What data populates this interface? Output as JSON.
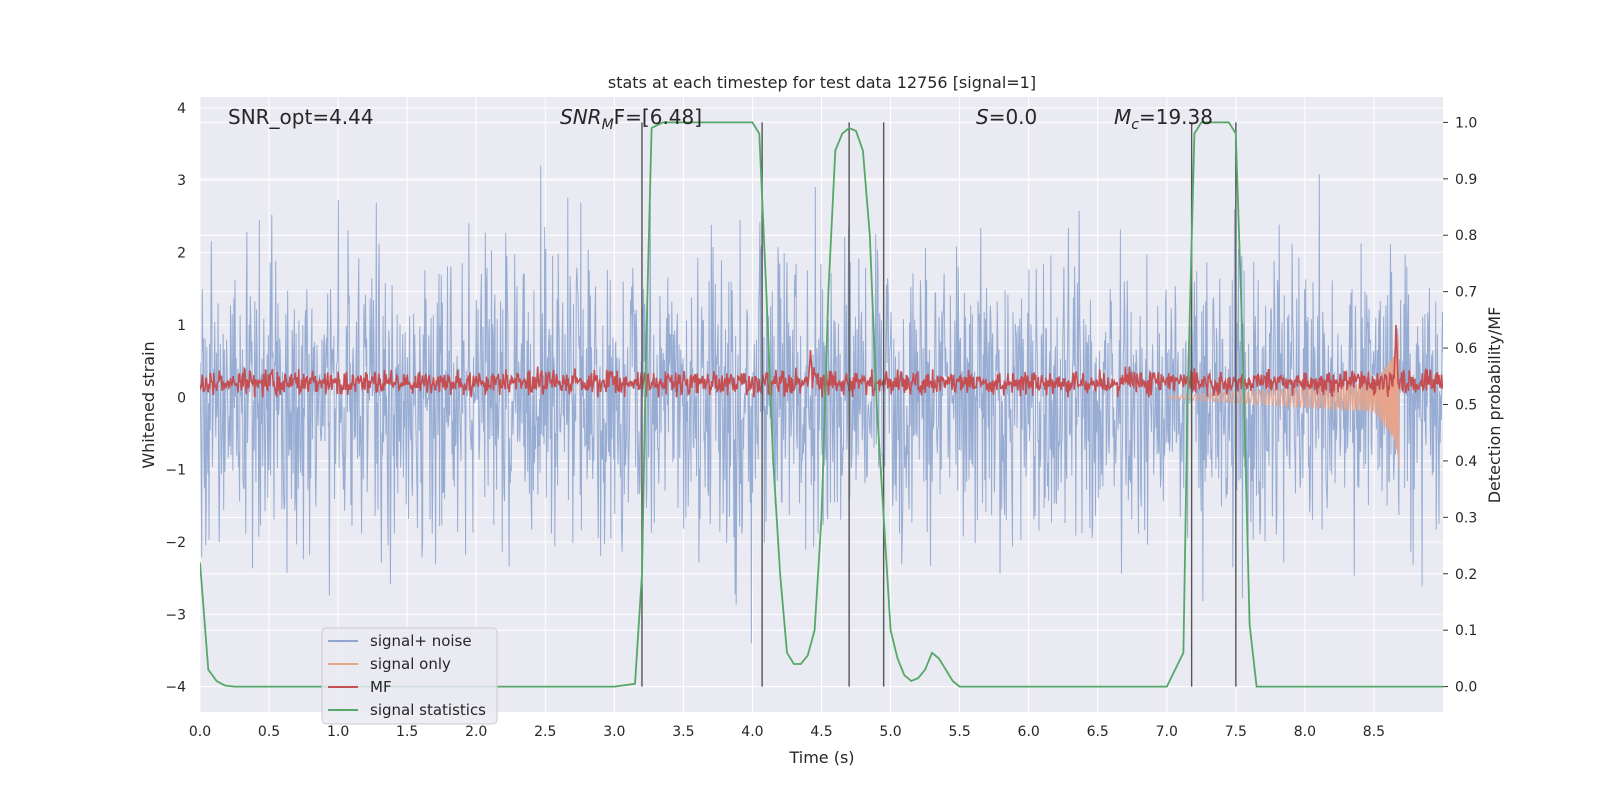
{
  "chart_data": {
    "type": "line",
    "title": "stats at each timestep for test data 12756 [signal=1]",
    "xlabel": "Time (s)",
    "ylabel": "Whitened strain",
    "y2label": "Detection probability/MF",
    "xlim": [
      0,
      9.0
    ],
    "ylim": [
      -4.35,
      4.15
    ],
    "y2lim": [
      -0.045,
      1.045
    ],
    "x_ticks": [
      "0.0",
      "0.5",
      "1.0",
      "1.5",
      "2.0",
      "2.5",
      "3.0",
      "3.5",
      "4.0",
      "4.5",
      "5.0",
      "5.5",
      "6.0",
      "6.5",
      "7.0",
      "7.5",
      "8.0",
      "8.5"
    ],
    "y_ticks": [
      "4",
      "3",
      "2",
      "1",
      "0",
      "−1",
      "−2",
      "−3",
      "−4"
    ],
    "y2_ticks": [
      "1.0",
      "0.9",
      "0.8",
      "0.7",
      "0.6",
      "0.5",
      "0.4",
      "0.3",
      "0.2",
      "0.1",
      "0.0"
    ],
    "grid": true,
    "legend_position": "lower-left",
    "annotations": {
      "snr_opt": "SNR_opt=4.44",
      "snr_mf_main": "SNR",
      "snr_mf_sub": "M",
      "snr_mf_rest": "F=[6.48]",
      "s_main": "S",
      "s_rest": "=0.0",
      "mc_main": "M",
      "mc_sub": "c",
      "mc_rest": "=19.38"
    },
    "series": [
      {
        "name": "signal+ noise",
        "color": "#8ea5cf",
        "axis": "left",
        "kind": "noise",
        "amplitude_range": [
          -3.4,
          3.6
        ]
      },
      {
        "name": "signal only",
        "color": "#e8a48a",
        "axis": "left",
        "kind": "chirp",
        "x": [
          7.0,
          8.5,
          8.65,
          8.68
        ],
        "y_envelope": [
          0.02,
          0.2,
          0.6,
          1.0
        ]
      },
      {
        "name": "MF",
        "color": "#c44e52",
        "axis": "left",
        "kind": "mf",
        "y_range": [
          0.0,
          0.65
        ],
        "peaks": [
          [
            4.42,
            0.65
          ],
          [
            8.66,
            1.0
          ]
        ]
      },
      {
        "name": "signal statistics",
        "color": "#55a868",
        "axis": "right",
        "x": [
          0.0,
          0.06,
          0.12,
          0.18,
          0.25,
          0.5,
          1.0,
          2.0,
          3.0,
          3.15,
          3.2,
          3.23,
          3.27,
          3.35,
          3.5,
          4.0,
          4.05,
          4.1,
          4.15,
          4.2,
          4.25,
          4.3,
          4.35,
          4.4,
          4.45,
          4.5,
          4.55,
          4.6,
          4.65,
          4.7,
          4.75,
          4.8,
          4.85,
          4.9,
          4.95,
          5.0,
          5.05,
          5.1,
          5.15,
          5.2,
          5.25,
          5.3,
          5.35,
          5.4,
          5.45,
          5.5,
          5.55,
          5.6,
          5.7,
          6.0,
          7.0,
          7.12,
          7.15,
          7.2,
          7.25,
          7.3,
          7.45,
          7.5,
          7.55,
          7.6,
          7.65,
          8.0,
          9.0
        ],
        "y": [
          0.22,
          0.03,
          0.01,
          0.002,
          0.0,
          0.0,
          0.0,
          0.0,
          0.0,
          0.005,
          0.2,
          0.6,
          0.99,
          1.0,
          1.0,
          1.0,
          0.98,
          0.7,
          0.4,
          0.2,
          0.06,
          0.04,
          0.04,
          0.055,
          0.1,
          0.3,
          0.7,
          0.95,
          0.98,
          0.99,
          0.985,
          0.95,
          0.8,
          0.5,
          0.3,
          0.1,
          0.05,
          0.02,
          0.01,
          0.015,
          0.03,
          0.06,
          0.05,
          0.03,
          0.01,
          0.0,
          0.0,
          0.0,
          0.0,
          0.0,
          0.0,
          0.06,
          0.5,
          0.98,
          1.0,
          1.0,
          1.0,
          0.98,
          0.6,
          0.11,
          0.0,
          0.0,
          0.0
        ]
      }
    ],
    "vlines_x": [
      3.2,
      4.07,
      4.7,
      4.95,
      7.18,
      7.5
    ]
  }
}
